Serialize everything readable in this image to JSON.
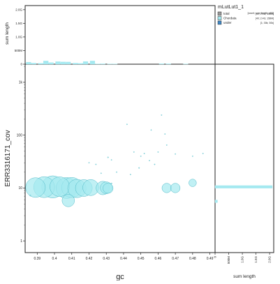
{
  "chart_data": {
    "type": "scatter",
    "xlabel": "gc",
    "ylabel": "ERR3316171_cov",
    "y_scale": "log",
    "x_ticks": [
      "0.39",
      "0.4",
      "0.41",
      "0.42",
      "0.43",
      "0.44",
      "0.45",
      "0.46",
      "0.47",
      "0.48",
      "0.49"
    ],
    "y_ticks": [
      "1",
      "10",
      "100",
      "1k"
    ],
    "xlim": [
      0.383,
      0.493
    ],
    "ylim": [
      0.6,
      2200
    ],
    "top_panel": {
      "ylabel": "sum length",
      "ticks": [
        "0",
        "500M",
        "1.0G",
        "1.5G",
        "2.0G"
      ],
      "ylim": [
        0,
        2150
      ],
      "bins_x": [
        0.385,
        0.388,
        0.392,
        0.395,
        0.398,
        0.402,
        0.405,
        0.408,
        0.412,
        0.415,
        0.418,
        0.422,
        0.425,
        0.428,
        0.432,
        0.435,
        0.462,
        0.466,
        0.476
      ],
      "bins_value": [
        75,
        40,
        35,
        120,
        60,
        95,
        85,
        80,
        40,
        30,
        100,
        120,
        10,
        15,
        10,
        10,
        20,
        15,
        10
      ]
    },
    "right_panel": {
      "xlabel": "sum length",
      "ticks": [
        "0",
        "500M",
        "1.0G",
        "1.5G",
        "2.0G"
      ],
      "xlim": [
        0,
        2150
      ],
      "bins_y": [
        10.5,
        5.6
      ],
      "bins_value": [
        2100,
        90
      ]
    },
    "legend": {
      "title": "mLutLut1_1",
      "header": "[count; sum length; n50]",
      "placement": "top-right",
      "items": [
        {
          "name": "total",
          "stats": "[40; 2.4G; 158M]",
          "color": "#999999"
        },
        {
          "name": "Chordata",
          "stats": "[40; 2.4G; 158M]",
          "color": "#a5e9f0"
        },
        {
          "name": "under",
          "stats": "[1; 30k; 30k]",
          "color": "#3e88c6"
        }
      ]
    },
    "points": [
      {
        "x": 0.389,
        "y": 10.2,
        "length": 150
      },
      {
        "x": 0.394,
        "y": 10.4,
        "length": 170
      },
      {
        "x": 0.399,
        "y": 10.5,
        "length": 190
      },
      {
        "x": 0.403,
        "y": 10.6,
        "length": 150
      },
      {
        "x": 0.407,
        "y": 10.0,
        "length": 170
      },
      {
        "x": 0.408,
        "y": 5.8,
        "length": 60
      },
      {
        "x": 0.41,
        "y": 10.2,
        "length": 160
      },
      {
        "x": 0.413,
        "y": 9.8,
        "length": 130
      },
      {
        "x": 0.417,
        "y": 10.0,
        "length": 110
      },
      {
        "x": 0.421,
        "y": 10.2,
        "length": 100
      },
      {
        "x": 0.428,
        "y": 10.0,
        "length": 70
      },
      {
        "x": 0.43,
        "y": 10.1,
        "length": 55
      },
      {
        "x": 0.431,
        "y": 9.9,
        "length": 40
      },
      {
        "x": 0.465,
        "y": 10.0,
        "length": 35
      },
      {
        "x": 0.47,
        "y": 10.0,
        "length": 35
      },
      {
        "x": 0.48,
        "y": 12.5,
        "length": 22
      },
      {
        "x": 0.386,
        "y": 7.2,
        "length": 0.5
      },
      {
        "x": 0.433,
        "y": 12.2,
        "length": 0.5
      },
      {
        "x": 0.42,
        "y": 30,
        "length": 0.3
      },
      {
        "x": 0.424,
        "y": 28,
        "length": 0.3
      },
      {
        "x": 0.431,
        "y": 38,
        "length": 0.4
      },
      {
        "x": 0.433,
        "y": 34,
        "length": 0.3
      },
      {
        "x": 0.446,
        "y": 48,
        "length": 0.3
      },
      {
        "x": 0.45,
        "y": 40,
        "length": 0.3
      },
      {
        "x": 0.452,
        "y": 45,
        "length": 0.3
      },
      {
        "x": 0.455,
        "y": 33,
        "length": 0.3
      },
      {
        "x": 0.449,
        "y": 24,
        "length": 0.4
      },
      {
        "x": 0.458,
        "y": 28,
        "length": 0.3
      },
      {
        "x": 0.46,
        "y": 48,
        "length": 0.3
      },
      {
        "x": 0.442,
        "y": 160,
        "length": 0.3
      },
      {
        "x": 0.456,
        "y": 125,
        "length": 0.3
      },
      {
        "x": 0.462,
        "y": 240,
        "length": 0.3
      },
      {
        "x": 0.464,
        "y": 105,
        "length": 0.3
      },
      {
        "x": 0.465,
        "y": 65,
        "length": 0.3
      },
      {
        "x": 0.47,
        "y": 44,
        "length": 0.3
      },
      {
        "x": 0.48,
        "y": 40,
        "length": 0.3
      },
      {
        "x": 0.486,
        "y": 45,
        "length": 0.3
      },
      {
        "x": 0.444,
        "y": 18,
        "length": 0.3
      },
      {
        "x": 0.436,
        "y": 20,
        "length": 0.3
      },
      {
        "x": 0.427,
        "y": 19,
        "length": 0.3
      }
    ],
    "color": "#a5e9f0",
    "stroke_color": "#4fb9c7"
  }
}
